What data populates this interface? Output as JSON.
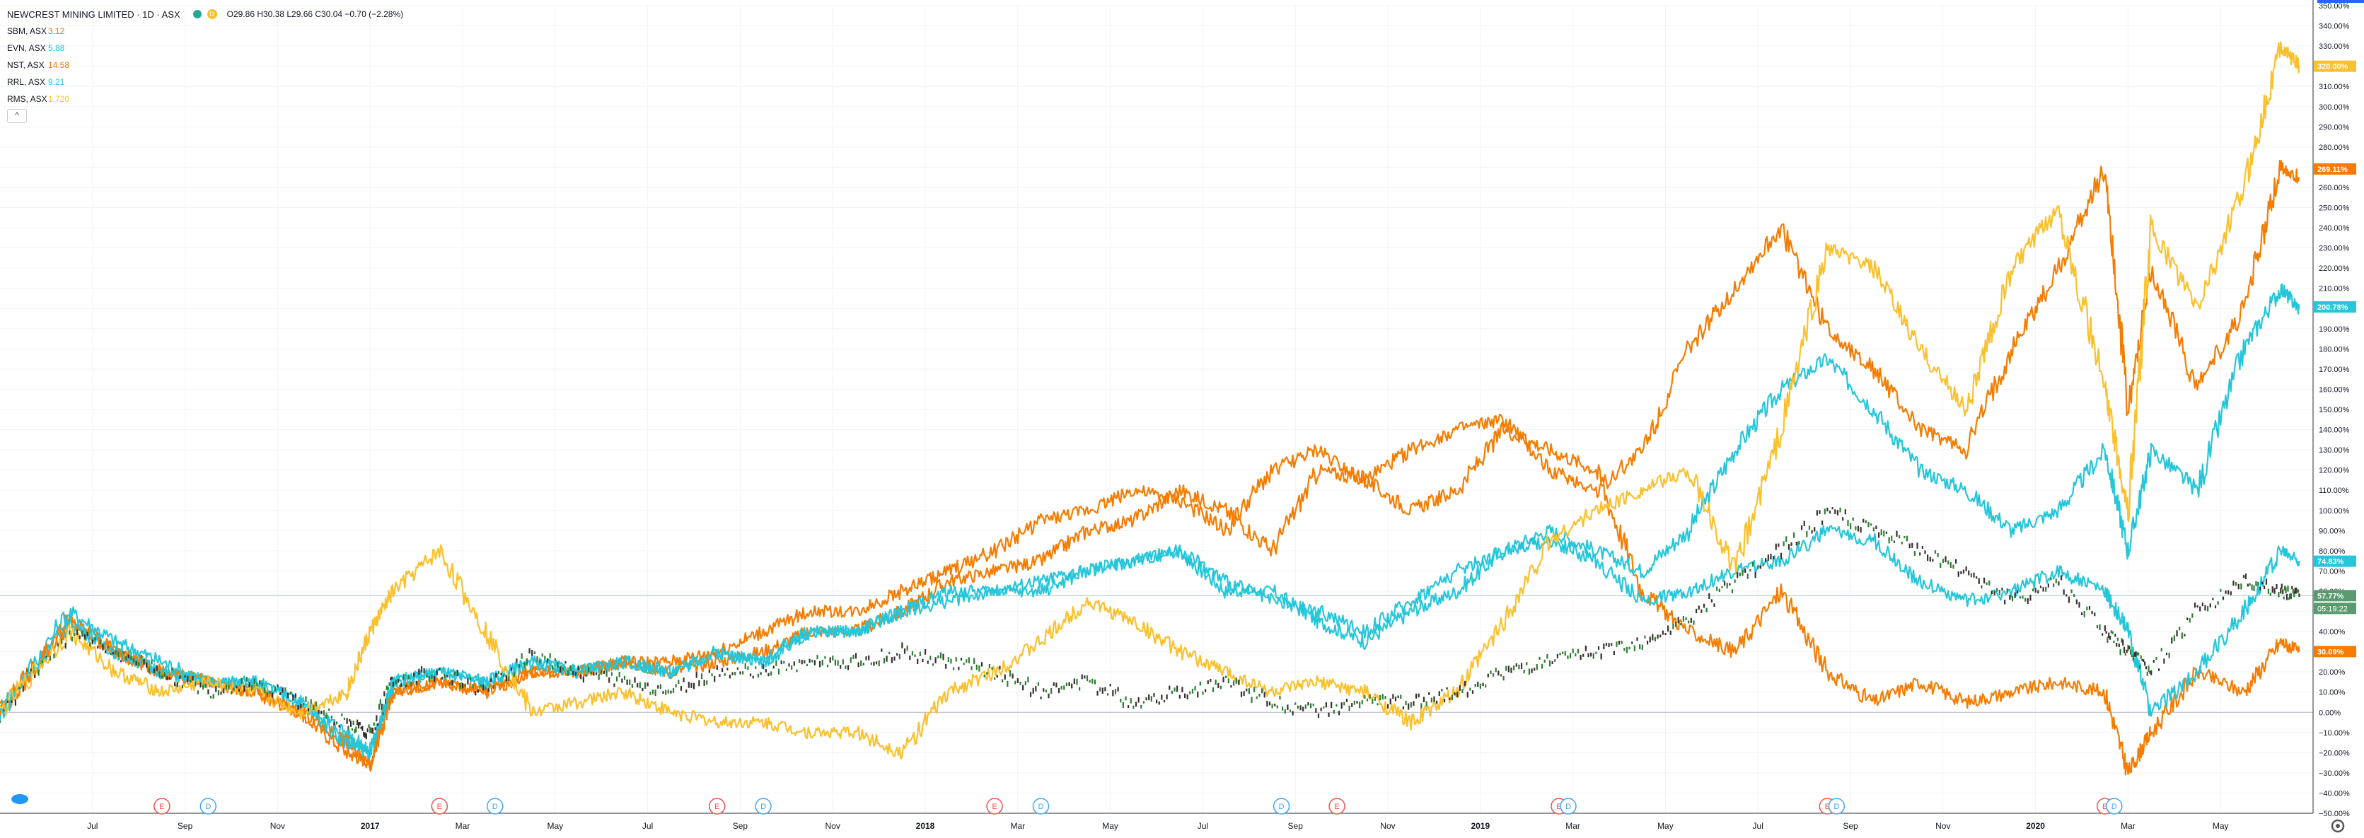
{
  "header": {
    "title": "NEWCREST MINING LIMITED · 1D · ASX",
    "ohlc": "O29.86 H30.38 L29.66 C30.04 −0.70 (−2.28%)"
  },
  "legend": [
    {
      "symbol": "SBM, ASX",
      "value": "3.12",
      "color": "#f57c00"
    },
    {
      "symbol": "EVN, ASX",
      "value": "5.88",
      "color": "#26c6da"
    },
    {
      "symbol": "NST, ASX",
      "value": "14.58",
      "color": "#f57c00"
    },
    {
      "symbol": "RRL, ASX",
      "value": "9.21",
      "color": "#26c6da"
    },
    {
      "symbol": "RMS, ASX",
      "value": "1.720",
      "color": "#fbc02d"
    }
  ],
  "collapse_label": "^",
  "settings_icon": "gear-icon",
  "colors": {
    "orange": "#f57c00",
    "cyan": "#26c6da",
    "yellow": "#fbc02d",
    "main_up": "#2e7d32",
    "main_down": "#3a2f2f",
    "green_label": "#5b9a6e",
    "earnings": "#ef5350",
    "dividend": "#42a5f5"
  },
  "chart_data": {
    "type": "line",
    "title": "NEWCREST MINING LIMITED · 1D · ASX",
    "y_axis_unit": "percent",
    "ylim": [
      -50,
      350
    ],
    "y_ticks": [
      "350.00%",
      "340.00%",
      "330.00%",
      "320.00%",
      "310.00%",
      "300.00%",
      "290.00%",
      "280.00%",
      "270.00%",
      "260.00%",
      "250.00%",
      "240.00%",
      "230.00%",
      "220.00%",
      "210.00%",
      "200.00%",
      "190.00%",
      "180.00%",
      "170.00%",
      "160.00%",
      "150.00%",
      "140.00%",
      "130.00%",
      "120.00%",
      "110.00%",
      "100.00%",
      "90.00%",
      "80.00%",
      "70.00%",
      "60.00%",
      "50.00%",
      "40.00%",
      "30.00%",
      "20.00%",
      "10.00%",
      "0.00%",
      "−10.00%",
      "−20.00%",
      "−30.00%",
      "−40.00%",
      "−50.00%"
    ],
    "x_ticks": [
      {
        "label": "Jul",
        "t": 0.5
      },
      {
        "label": "Sep",
        "t": 2.5
      },
      {
        "label": "Nov",
        "t": 4.5
      },
      {
        "label": "2017",
        "t": 6.5
      },
      {
        "label": "Mar",
        "t": 8.5
      },
      {
        "label": "May",
        "t": 10.5
      },
      {
        "label": "Jul",
        "t": 12.5
      },
      {
        "label": "Sep",
        "t": 14.5
      },
      {
        "label": "Nov",
        "t": 16.5
      },
      {
        "label": "2018",
        "t": 18.5
      },
      {
        "label": "Mar",
        "t": 20.5
      },
      {
        "label": "May",
        "t": 22.5
      },
      {
        "label": "Jul",
        "t": 24.5
      },
      {
        "label": "Sep",
        "t": 26.5
      },
      {
        "label": "Nov",
        "t": 28.5
      },
      {
        "label": "2019",
        "t": 30.5
      },
      {
        "label": "Mar",
        "t": 32.5
      },
      {
        "label": "May",
        "t": 34.5
      },
      {
        "label": "Jul",
        "t": 36.5
      },
      {
        "label": "Sep",
        "t": 38.5
      },
      {
        "label": "Nov",
        "t": 40.5
      },
      {
        "label": "2020",
        "t": 42.5
      },
      {
        "label": "Mar",
        "t": 44.5
      },
      {
        "label": "May",
        "t": 46.5
      }
    ],
    "x_range": [
      -1.5,
      48.5
    ],
    "series": [
      {
        "name": "SBM, ASX",
        "color": "#f57c00",
        "last_label": "30.09%",
        "x": [
          -1.5,
          0,
          1,
          2,
          3,
          4,
          5,
          6,
          6.5,
          7,
          8,
          9,
          10,
          11,
          12,
          13,
          14,
          15,
          16,
          17,
          18,
          19,
          20,
          21,
          22,
          23,
          24,
          25,
          26,
          27,
          28,
          29,
          30,
          31,
          32,
          33,
          34,
          35,
          36,
          37,
          38,
          39,
          40,
          41,
          42,
          43,
          44,
          44.5,
          45,
          46,
          47,
          47.8,
          48.2
        ],
        "y": [
          0,
          45,
          30,
          20,
          15,
          10,
          0,
          -20,
          -25,
          10,
          15,
          10,
          20,
          20,
          25,
          20,
          25,
          30,
          40,
          40,
          50,
          65,
          70,
          75,
          90,
          95,
          110,
          100,
          80,
          120,
          115,
          100,
          110,
          140,
          130,
          120,
          60,
          40,
          30,
          60,
          20,
          5,
          15,
          5,
          10,
          15,
          10,
          -30,
          -10,
          20,
          10,
          35,
          30
        ]
      },
      {
        "name": "EVN, ASX",
        "color": "#26c6da",
        "last_label": "74.83%",
        "x": [
          -1.5,
          0,
          1,
          2,
          3,
          4,
          5,
          6,
          6.5,
          7,
          8,
          9,
          10,
          11,
          12,
          13,
          14,
          15,
          16,
          17,
          18,
          19,
          20,
          21,
          22,
          23,
          24,
          25,
          26,
          27,
          28,
          29,
          30,
          31,
          32,
          33,
          34,
          35,
          36,
          37,
          38,
          39,
          40,
          41,
          42,
          43,
          44,
          44.5,
          45,
          46,
          47,
          47.8,
          48.2
        ],
        "y": [
          0,
          50,
          35,
          25,
          15,
          15,
          5,
          -10,
          -20,
          15,
          20,
          15,
          25,
          20,
          25,
          20,
          30,
          25,
          40,
          40,
          50,
          55,
          60,
          60,
          70,
          75,
          80,
          65,
          55,
          50,
          40,
          55,
          70,
          80,
          85,
          75,
          55,
          60,
          70,
          75,
          90,
          85,
          65,
          55,
          60,
          70,
          60,
          40,
          0,
          20,
          50,
          80,
          75
        ]
      },
      {
        "name": "NST, ASX",
        "color": "#f57c00",
        "last_label": "269.11%",
        "x": [
          -1.5,
          0,
          1,
          2,
          3,
          4,
          5,
          6,
          6.5,
          7,
          8,
          9,
          10,
          11,
          12,
          13,
          14,
          15,
          16,
          17,
          18,
          19,
          20,
          21,
          22,
          23,
          24,
          25,
          26,
          27,
          28,
          29,
          30,
          31,
          32,
          33,
          34,
          35,
          36,
          37,
          38,
          39,
          40,
          41,
          42,
          43,
          44,
          44.5,
          45,
          46,
          47,
          47.8,
          48.2
        ],
        "y": [
          0,
          45,
          30,
          20,
          15,
          10,
          0,
          -15,
          -25,
          10,
          15,
          10,
          20,
          20,
          25,
          25,
          30,
          40,
          50,
          50,
          60,
          70,
          80,
          95,
          100,
          110,
          105,
          90,
          120,
          130,
          115,
          130,
          140,
          145,
          120,
          110,
          130,
          180,
          210,
          240,
          190,
          170,
          140,
          130,
          180,
          220,
          270,
          150,
          220,
          160,
          200,
          270,
          265
        ]
      },
      {
        "name": "RRL, ASX",
        "color": "#26c6da",
        "last_label": "200.78%",
        "x": [
          -1.5,
          0,
          1,
          2,
          3,
          4,
          5,
          6,
          6.5,
          7,
          8,
          9,
          10,
          11,
          12,
          13,
          14,
          15,
          16,
          17,
          18,
          19,
          20,
          21,
          22,
          23,
          24,
          25,
          26,
          27,
          28,
          29,
          30,
          31,
          32,
          33,
          34,
          35,
          36,
          37,
          38,
          39,
          40,
          41,
          42,
          43,
          44,
          44.5,
          45,
          46,
          47,
          47.8,
          48.2
        ],
        "y": [
          0,
          45,
          30,
          20,
          15,
          15,
          5,
          -15,
          -20,
          15,
          20,
          15,
          25,
          20,
          25,
          20,
          30,
          25,
          40,
          40,
          50,
          60,
          60,
          65,
          70,
          75,
          80,
          60,
          60,
          45,
          35,
          50,
          60,
          80,
          90,
          80,
          70,
          90,
          130,
          160,
          175,
          150,
          120,
          110,
          90,
          100,
          130,
          80,
          130,
          110,
          180,
          210,
          200
        ]
      },
      {
        "name": "RMS, ASX",
        "color": "#fbc02d",
        "last_label": "320.00%",
        "x": [
          -1.5,
          0,
          1,
          2,
          3,
          4,
          5,
          6,
          6.5,
          7,
          8,
          9,
          10,
          11,
          12,
          13,
          14,
          15,
          16,
          17,
          18,
          19,
          20,
          21,
          22,
          23,
          24,
          25,
          26,
          27,
          28,
          29,
          30,
          31,
          32,
          33,
          34,
          35,
          36,
          37,
          38,
          39,
          40,
          41,
          42,
          43,
          44,
          44.5,
          45,
          46,
          47,
          47.8,
          48.2
        ],
        "y": [
          0,
          40,
          20,
          10,
          15,
          10,
          0,
          10,
          40,
          60,
          80,
          40,
          0,
          5,
          10,
          0,
          -5,
          -5,
          -10,
          -10,
          -20,
          10,
          20,
          35,
          55,
          45,
          30,
          20,
          10,
          15,
          10,
          -5,
          10,
          45,
          85,
          100,
          110,
          120,
          70,
          140,
          230,
          220,
          180,
          150,
          220,
          250,
          160,
          100,
          240,
          200,
          260,
          330,
          320
        ]
      },
      {
        "name": "",
        "color": "#3a2f2f",
        "last_label": "57.77%",
        "x": [
          -1.5,
          0,
          1,
          2,
          3,
          4,
          5,
          6,
          6.5,
          7,
          8,
          9,
          10,
          11,
          12,
          13,
          14,
          15,
          16,
          17,
          18,
          19,
          20,
          21,
          22,
          23,
          24,
          25,
          26,
          27,
          28,
          29,
          30,
          31,
          32,
          33,
          34,
          35,
          36,
          37,
          38,
          39,
          40,
          41,
          42,
          43,
          44,
          44.5,
          45,
          46,
          47,
          47.8,
          48.2
        ],
        "y": [
          0,
          40,
          30,
          20,
          10,
          15,
          5,
          -5,
          -10,
          15,
          20,
          10,
          30,
          20,
          15,
          10,
          20,
          20,
          25,
          25,
          30,
          25,
          20,
          10,
          15,
          5,
          10,
          15,
          5,
          0,
          5,
          5,
          10,
          20,
          25,
          30,
          35,
          45,
          65,
          80,
          100,
          90,
          80,
          70,
          55,
          65,
          40,
          30,
          20,
          50,
          65,
          60,
          58
        ]
      }
    ],
    "current_time_label": "05:19:22",
    "events": [
      {
        "type": "E",
        "t": 2.0
      },
      {
        "type": "D",
        "t": 3.0
      },
      {
        "type": "E",
        "t": 8.0
      },
      {
        "type": "D",
        "t": 9.2
      },
      {
        "type": "E",
        "t": 14.0
      },
      {
        "type": "D",
        "t": 15.0
      },
      {
        "type": "E",
        "t": 20.0
      },
      {
        "type": "D",
        "t": 21.0
      },
      {
        "type": "D",
        "t": 26.2
      },
      {
        "type": "E",
        "t": 27.4
      },
      {
        "type": "E",
        "t": 32.2
      },
      {
        "type": "D",
        "t": 32.4
      },
      {
        "type": "E",
        "t": 38.0
      },
      {
        "type": "D",
        "t": 38.2
      },
      {
        "type": "E",
        "t": 44.0
      },
      {
        "type": "D",
        "t": 44.2
      }
    ]
  }
}
